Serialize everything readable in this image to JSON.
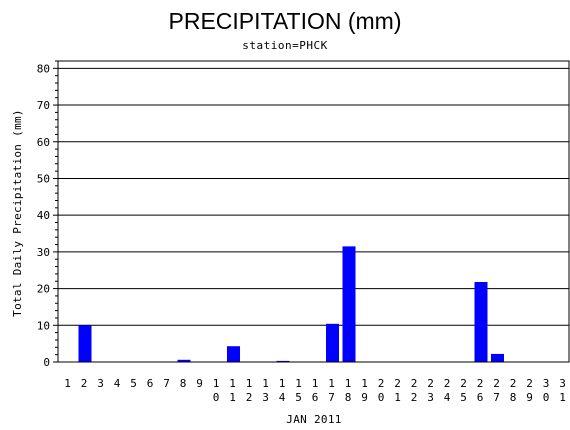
{
  "chart_data": {
    "type": "bar",
    "title": "PRECIPITATION (mm)",
    "subtitle": "station=PHCK",
    "xlabel": "JAN 2011",
    "ylabel": "Total Daily Precipitation (mm)",
    "ylim": [
      0,
      82
    ],
    "yticks": [
      0,
      10,
      20,
      30,
      40,
      50,
      60,
      70,
      80
    ],
    "grid": true,
    "categories": [
      "1",
      "2",
      "3",
      "4",
      "5",
      "6",
      "7",
      "8",
      "9",
      "10",
      "11",
      "12",
      "13",
      "14",
      "15",
      "16",
      "17",
      "18",
      "19",
      "20",
      "21",
      "22",
      "23",
      "24",
      "25",
      "26",
      "27",
      "28",
      "29",
      "30",
      "31"
    ],
    "values": [
      0,
      10,
      0,
      0,
      0,
      0,
      0,
      0.6,
      0,
      0,
      4.3,
      0,
      0,
      0.3,
      0,
      0,
      10.4,
      31.5,
      0,
      0,
      0,
      0,
      0,
      0,
      0,
      21.8,
      2.2,
      0,
      0,
      0,
      0
    ],
    "bar_color": "#0000ff"
  }
}
